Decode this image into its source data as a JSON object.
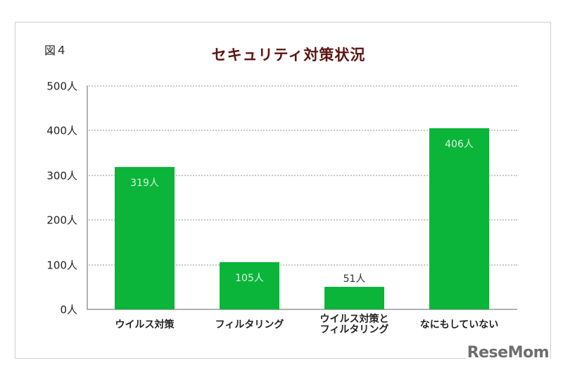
{
  "figure_label": "図４",
  "chart_data": {
    "type": "bar",
    "title": "セキュリティ対策状況",
    "xlabel": "",
    "ylabel": "",
    "unit": "人",
    "categories": [
      "ウイルス対策",
      "フィルタリング",
      "ウイルス対策と\nフィルタリング",
      "なにもしていない"
    ],
    "values": [
      319,
      105,
      51,
      406
    ],
    "data_labels": [
      "319人",
      "105人",
      "51人",
      "406人"
    ],
    "ylim": [
      0,
      500
    ],
    "yticks": [
      0,
      100,
      200,
      300,
      400,
      500
    ],
    "ytick_labels": [
      "0人",
      "100人",
      "200人",
      "300人",
      "400人",
      "500人"
    ],
    "grid": true,
    "legend": null,
    "bar_color": "#0ab53a"
  },
  "watermark": "ReseMom"
}
